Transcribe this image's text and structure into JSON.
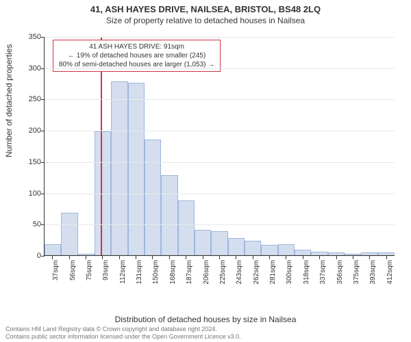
{
  "title": {
    "line1": "41, ASH HAYES DRIVE, NAILSEA, BRISTOL, BS48 2LQ",
    "line2": "Size of property relative to detached houses in Nailsea",
    "fontsize_line1": 13,
    "fontsize_line2": 12,
    "color": "#333333"
  },
  "chart": {
    "type": "histogram",
    "background_color": "#ffffff",
    "grid_color": "#e8e8e8",
    "axis_color": "#333333",
    "bar_fill": "#d4deef",
    "bar_border": "#9fb6db",
    "bar_border_width": 1,
    "y_axis": {
      "label": "Number of detached properties",
      "label_fontsize": 12,
      "min": 0,
      "max": 350,
      "tick_step": 50,
      "tick_fontsize": 11
    },
    "x_axis": {
      "label": "Distribution of detached houses by size in Nailsea",
      "label_fontsize": 12,
      "tick_fontsize": 10,
      "tick_unit": "sqm"
    },
    "categories": [
      37,
      56,
      75,
      93,
      112,
      131,
      150,
      168,
      187,
      206,
      225,
      243,
      262,
      281,
      300,
      318,
      337,
      356,
      375,
      393,
      412
    ],
    "values": [
      18,
      68,
      2,
      198,
      278,
      276,
      185,
      128,
      88,
      40,
      38,
      27,
      23,
      16,
      18,
      9,
      6,
      4,
      2,
      4,
      4
    ],
    "reference_line": {
      "value": 91,
      "color": "#cc3344",
      "width": 2
    },
    "annotation": {
      "lines": [
        "41 ASH HAYES DRIVE: 91sqm",
        "← 19% of detached houses are smaller (245)",
        "80% of semi-detached houses are larger (1,053) →"
      ],
      "border_color": "#cc3344",
      "fontsize": 10,
      "position_category_center": 131
    }
  },
  "footer": {
    "line1": "Contains HM Land Registry data © Crown copyright and database right 2024.",
    "line2": "Contains public sector information licensed under the Open Government Licence v3.0.",
    "fontsize": 9,
    "color": "#777777"
  }
}
